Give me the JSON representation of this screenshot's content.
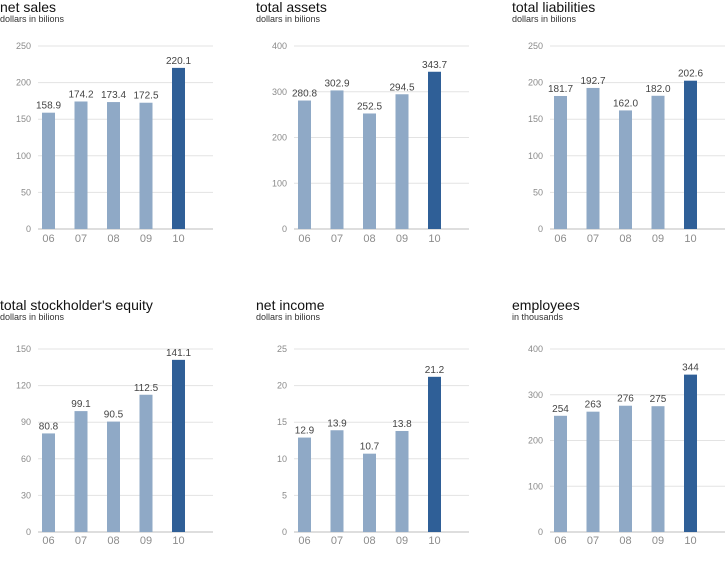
{
  "colors": {
    "bar": "#8fa9c6",
    "highlight": "#2f5f97"
  },
  "chart_data": [
    {
      "type": "bar",
      "title": "net sales",
      "subtitle": "dollars in bilions",
      "categories": [
        "06",
        "07",
        "08",
        "09",
        "10"
      ],
      "values": [
        158.9,
        174.2,
        173.4,
        172.5,
        220.1
      ],
      "value_labels": [
        "158.9",
        "174.2",
        "173.4",
        "172.5",
        "220.1"
      ],
      "yticks": [
        "0",
        "50",
        "100",
        "150",
        "200",
        "250"
      ],
      "ylim": [
        0,
        250
      ]
    },
    {
      "type": "bar",
      "title": "total assets",
      "subtitle": "dollars in bilions",
      "categories": [
        "06",
        "07",
        "08",
        "09",
        "10"
      ],
      "values": [
        280.8,
        302.9,
        252.5,
        294.5,
        343.7
      ],
      "value_labels": [
        "280.8",
        "302.9",
        "252.5",
        "294.5",
        "343.7"
      ],
      "yticks": [
        "0",
        "100",
        "200",
        "300",
        "400"
      ],
      "ylim": [
        0,
        400
      ]
    },
    {
      "type": "bar",
      "title": "total liabilities",
      "subtitle": "dollars in bilions",
      "categories": [
        "06",
        "07",
        "08",
        "09",
        "10"
      ],
      "values": [
        181.7,
        192.7,
        162.0,
        182.0,
        202.6
      ],
      "value_labels": [
        "181.7",
        "192.7",
        "162.0",
        "182.0",
        "202.6"
      ],
      "yticks": [
        "0",
        "50",
        "100",
        "150",
        "200",
        "250"
      ],
      "ylim": [
        0,
        250
      ]
    },
    {
      "type": "bar",
      "title": "total stockholder's equity",
      "subtitle": "dollars in bilions",
      "categories": [
        "06",
        "07",
        "08",
        "09",
        "10"
      ],
      "values": [
        80.8,
        99.1,
        90.5,
        112.5,
        141.1
      ],
      "value_labels": [
        "80.8",
        "99.1",
        "90.5",
        "112.5",
        "141.1"
      ],
      "yticks": [
        "0",
        "30",
        "60",
        "90",
        "120",
        "150"
      ],
      "ylim": [
        0,
        150
      ]
    },
    {
      "type": "bar",
      "title": "net income",
      "subtitle": "dollars in bilions",
      "categories": [
        "06",
        "07",
        "08",
        "09",
        "10"
      ],
      "values": [
        12.9,
        13.9,
        10.7,
        13.8,
        21.2
      ],
      "value_labels": [
        "12.9",
        "13.9",
        "10.7",
        "13.8",
        "21.2"
      ],
      "yticks": [
        "0",
        "5",
        "10",
        "15",
        "20",
        "25"
      ],
      "ylim": [
        0,
        25
      ]
    },
    {
      "type": "bar",
      "title": "employees",
      "subtitle": "in thousands",
      "categories": [
        "06",
        "07",
        "08",
        "09",
        "10"
      ],
      "values": [
        254,
        263,
        276,
        275,
        344
      ],
      "value_labels": [
        "254",
        "263",
        "276",
        "275",
        "344"
      ],
      "yticks": [
        "0",
        "100",
        "200",
        "300",
        "400"
      ],
      "ylim": [
        0,
        400
      ]
    }
  ]
}
